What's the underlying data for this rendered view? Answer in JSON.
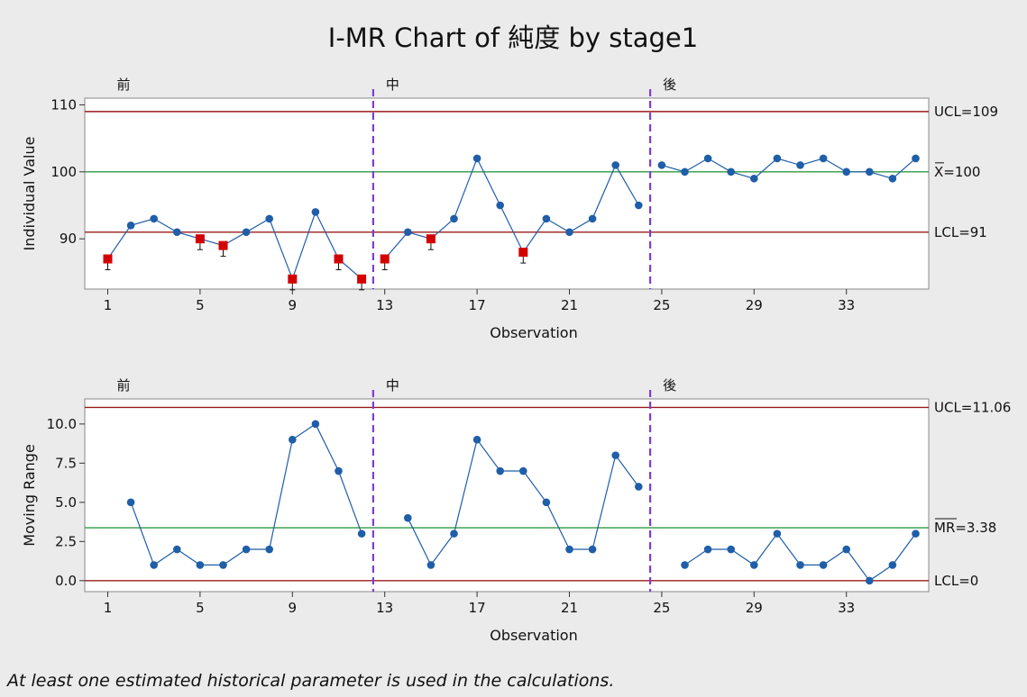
{
  "chart_data": {
    "type": "line",
    "title": "I-MR Chart of 純度 by stage1",
    "footer": "At least one estimated historical parameter is used in the calculations.",
    "stages": [
      {
        "label": "前",
        "start": 1
      },
      {
        "label": "中",
        "start": 13
      },
      {
        "label": "後",
        "start": 25
      }
    ],
    "x_ticks": [
      "1",
      "5",
      "9",
      "13",
      "17",
      "21",
      "25",
      "29",
      "33"
    ],
    "observations": [
      1,
      2,
      3,
      4,
      5,
      6,
      7,
      8,
      9,
      10,
      11,
      12,
      13,
      14,
      15,
      16,
      17,
      18,
      19,
      20,
      21,
      22,
      23,
      24,
      25,
      26,
      27,
      28,
      29,
      30,
      31,
      32,
      33,
      34,
      35,
      36
    ],
    "colors": {
      "series": "#1f5ea8",
      "center_line": "#2f9a44",
      "limit_line": "#9a1b1b",
      "stage_divider": "#7b3ed6",
      "flag": "#d40000",
      "plot_bg": "#ffffff",
      "background": "#ebebeb"
    },
    "charts": [
      {
        "id": "individual",
        "xlabel": "Observation",
        "ylabel": "Individual Value",
        "ylim": [
          82.5,
          111
        ],
        "y_ticks": [
          "110",
          "100",
          "90"
        ],
        "ucl": 109,
        "center": 100,
        "lcl": 91,
        "ucl_label": "UCL=109",
        "center_label": "X=100",
        "lcl_label": "LCL=91",
        "values": [
          87,
          92,
          93,
          91,
          90,
          89,
          91,
          93,
          84,
          94,
          87,
          84,
          87,
          91,
          90,
          93,
          102,
          95,
          88,
          93,
          91,
          93,
          101,
          95,
          101,
          100,
          102,
          100,
          99,
          102,
          101,
          102,
          100,
          100,
          99,
          102
        ],
        "flagged": [
          1,
          5,
          6,
          9,
          11,
          12,
          13,
          15,
          19
        ]
      },
      {
        "id": "moving-range",
        "xlabel": "Observation",
        "ylabel": "Moving Range",
        "ylim": [
          -0.7,
          11.6
        ],
        "y_ticks": [
          "10.0",
          "7.5",
          "5.0",
          "2.5",
          "0.0"
        ],
        "ucl": 11.06,
        "center": 3.38,
        "lcl": 0,
        "ucl_label": "UCL=11.06",
        "center_label": "MR=3.38",
        "lcl_label": "LCL=0",
        "values": [
          null,
          5,
          1,
          2,
          1,
          1,
          2,
          2,
          9,
          10,
          7,
          3,
          null,
          4,
          1,
          3,
          9,
          7,
          7,
          5,
          2,
          2,
          8,
          6,
          null,
          1,
          2,
          2,
          1,
          3,
          1,
          1,
          2,
          0,
          1,
          3
        ],
        "flagged": []
      }
    ]
  }
}
